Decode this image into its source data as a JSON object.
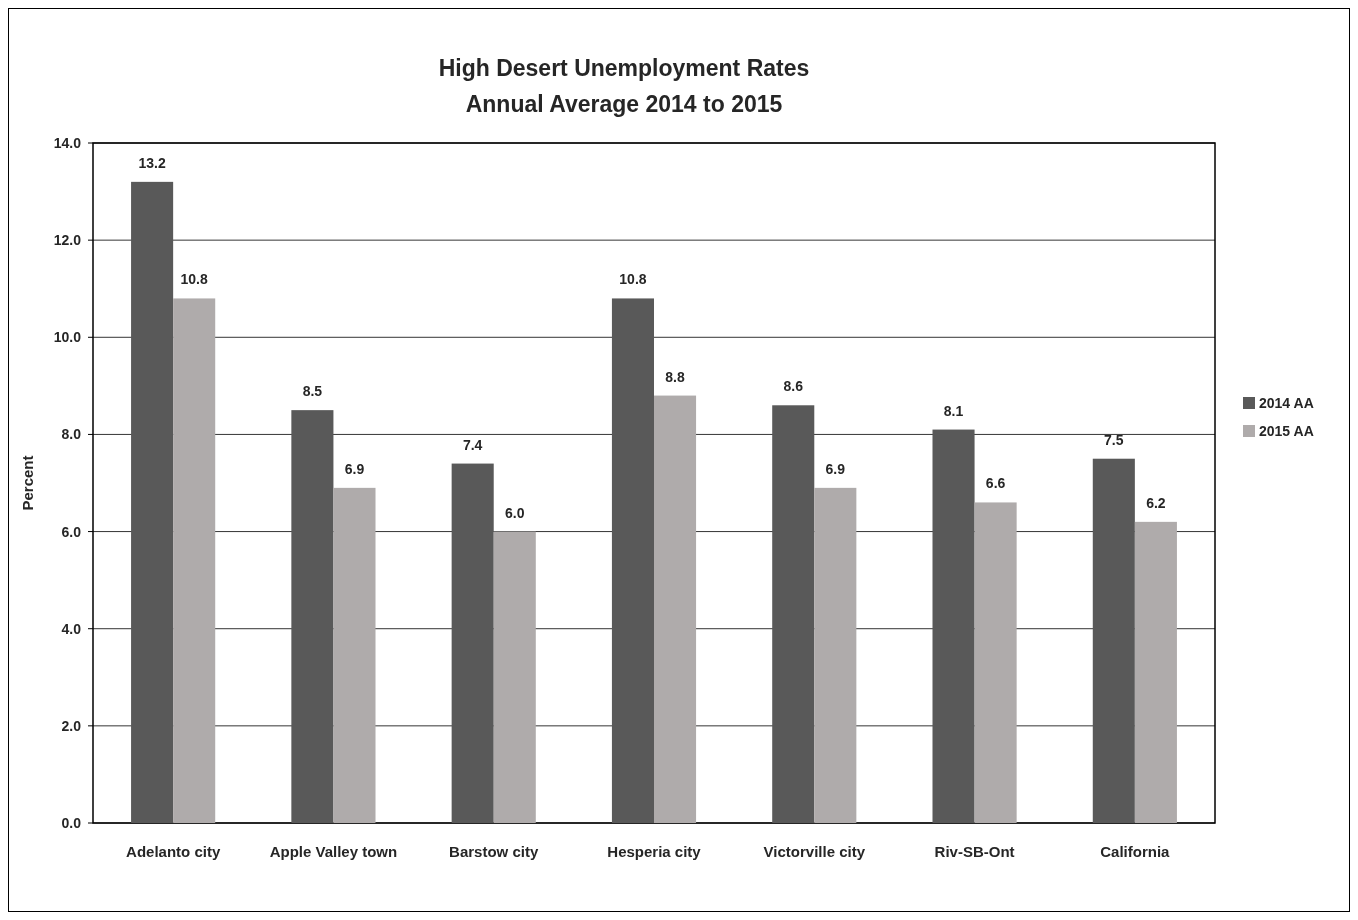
{
  "chart_data": {
    "type": "bar",
    "title": "High Desert Unemployment Rates",
    "subtitle": "Annual Average 2014 to 2015",
    "ylabel": "Percent",
    "categories": [
      "Adelanto city",
      "Apple Valley town",
      "Barstow city",
      "Hesperia city",
      "Victorville city",
      "Riv-SB-Ont",
      "California"
    ],
    "series": [
      {
        "name": "2014 AA",
        "color": "#595959",
        "values": [
          13.2,
          8.5,
          7.4,
          10.8,
          8.6,
          8.1,
          7.5
        ],
        "value_labels": [
          "13.2",
          "8.5",
          "7.4",
          "10.8",
          "8.6",
          "8.1",
          "7.5"
        ]
      },
      {
        "name": "2015 AA",
        "color": "#afabab",
        "values": [
          10.8,
          6.9,
          6.0,
          8.8,
          6.9,
          6.6,
          6.2
        ],
        "value_labels": [
          "10.8",
          "6.9",
          "6.0",
          "8.8",
          "6.9",
          "6.6",
          "6.2"
        ]
      }
    ],
    "ylim": [
      0,
      14
    ],
    "yticks": [
      {
        "value": 0,
        "label": "0.0"
      },
      {
        "value": 2,
        "label": "2.0"
      },
      {
        "value": 4,
        "label": "4.0"
      },
      {
        "value": 6,
        "label": "6.0"
      },
      {
        "value": 8,
        "label": "8.0"
      },
      {
        "value": 10,
        "label": "10.0"
      },
      {
        "value": 12,
        "label": "12.0"
      },
      {
        "value": 14,
        "label": "14.0"
      }
    ],
    "grid": "y",
    "legend": "right"
  }
}
